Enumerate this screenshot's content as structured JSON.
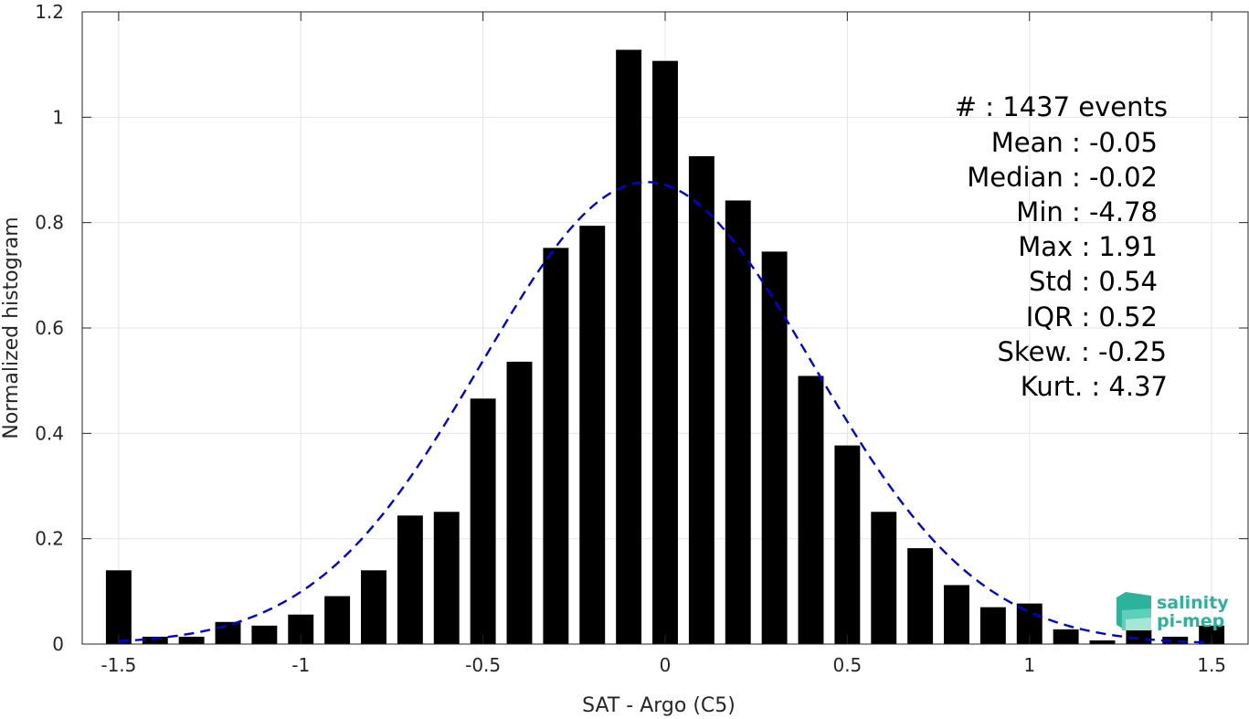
{
  "chart_data": {
    "type": "bar",
    "xlabel": "SAT - Argo (C5)",
    "ylabel": "Normalized histogram",
    "xlim": [
      -1.6,
      1.6
    ],
    "ylim": [
      0,
      1.2
    ],
    "xticks": [
      -1.5,
      -1,
      -0.5,
      0,
      0.5,
      1,
      1.5
    ],
    "xtick_labels": [
      "-1.5",
      "-1",
      "-0.5",
      "0",
      "0.5",
      "1",
      "1.5"
    ],
    "yticks": [
      0,
      0.2,
      0.4,
      0.6,
      0.8,
      1,
      1.2
    ],
    "ytick_labels": [
      "0",
      "0.2",
      "0.4",
      "0.6",
      "0.8",
      "1",
      "1.2"
    ],
    "grid": true,
    "bar_color": "#000000",
    "bin_width": 0.1,
    "bars": {
      "x": [
        -1.5,
        -1.4,
        -1.3,
        -1.2,
        -1.1,
        -1.0,
        -0.9,
        -0.8,
        -0.7,
        -0.6,
        -0.5,
        -0.4,
        -0.3,
        -0.2,
        -0.1,
        0.0,
        0.1,
        0.2,
        0.3,
        0.4,
        0.5,
        0.6,
        0.7,
        0.8,
        0.9,
        1.0,
        1.1,
        1.2,
        1.3,
        1.4,
        1.5
      ],
      "values": [
        0.14,
        0.014,
        0.014,
        0.042,
        0.035,
        0.056,
        0.091,
        0.14,
        0.244,
        0.251,
        0.466,
        0.536,
        0.752,
        0.794,
        1.128,
        1.107,
        0.926,
        0.842,
        0.745,
        0.509,
        0.377,
        0.251,
        0.182,
        0.112,
        0.07,
        0.077,
        0.028,
        0.007,
        0.028,
        0.014,
        0.035
      ]
    },
    "gaussian_fit": {
      "color": "#0000e6",
      "style": "dashed",
      "mean": -0.05,
      "std": 0.455,
      "peak": 0.877,
      "x_range": [
        -1.5,
        1.5
      ]
    },
    "stats_lines": [
      "#  : 1437 events",
      "Mean : -0.05",
      "Median : -0.02",
      "Min : -4.78",
      "Max : 1.91",
      "Std : 0.54",
      "IQR : 0.52",
      "Skew. : -0.25",
      "Kurt. : 4.37"
    ]
  },
  "logo": {
    "line1": "salinity",
    "line2": "pi-mep",
    "color": "#2bb39b"
  }
}
